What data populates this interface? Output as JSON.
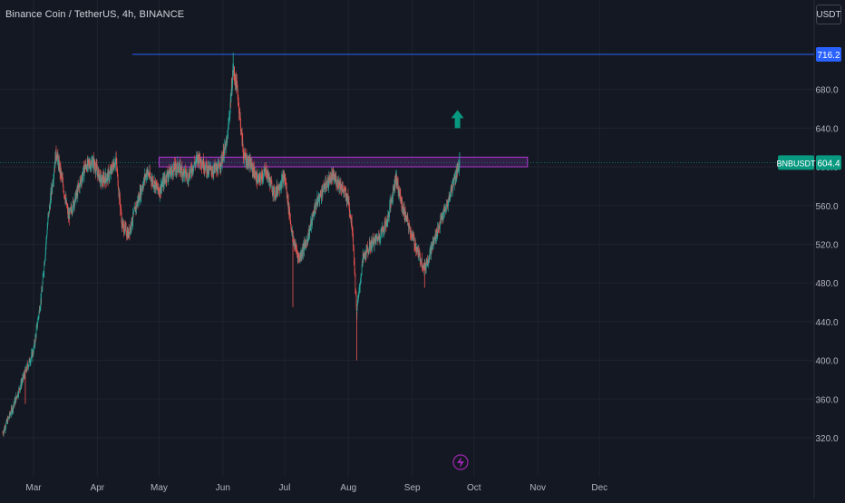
{
  "header": {
    "symbol_title": "Binance Coin / TetherUS, 4h, BINANCE",
    "currency_button": "USDT"
  },
  "colors": {
    "background": "#141822",
    "grid": "#1f2330",
    "up_candle": "#26a69a",
    "down_candle": "#ef5350",
    "zone_border": "#b23ad6",
    "zone_fill": "#6b2a8a",
    "resistance_line": "#2962ff",
    "price_badge": "#089981",
    "level_badge": "#2962ff",
    "arrow": "#089981",
    "lightning": "#9c27b0"
  },
  "chart_data": {
    "type": "candlestick",
    "ylim": [
      300,
      745
    ],
    "y_ticks": [
      "320.0",
      "360.0",
      "400.0",
      "440.0",
      "480.0",
      "520.0",
      "560.0",
      "600.0",
      "640.0",
      "680.0"
    ],
    "x_ticks": [
      "Mar",
      "Apr",
      "May",
      "Jun",
      "Jul",
      "Aug",
      "Sep",
      "Oct",
      "Nov",
      "Dec"
    ],
    "x_tick_dates": [
      "2024-03-01",
      "2024-04-01",
      "2024-05-01",
      "2024-06-01",
      "2024-07-01",
      "2024-08-01",
      "2024-09-01",
      "2024-10-01",
      "2024-11-01",
      "2024-12-01"
    ],
    "resistance_level": {
      "value": 716.2,
      "label": "716.2",
      "from_date": "2024-04-18"
    },
    "current_price": {
      "symbol": "BNBUSDT",
      "value": 604.4,
      "label": "604.4"
    },
    "zone": {
      "from_date": "2024-05-01",
      "to_date": "2024-10-27",
      "low": 600,
      "high": 610
    },
    "arrow_annotation": {
      "direction": "up",
      "date": "2024-09-23",
      "value": 640
    },
    "series_path": [
      [
        "2024-02-15",
        325
      ],
      [
        "2024-02-20",
        352
      ],
      [
        "2024-02-25",
        382
      ],
      [
        "2024-03-01",
        410
      ],
      [
        "2024-03-05",
        470
      ],
      [
        "2024-03-08",
        545
      ],
      [
        "2024-03-12",
        615
      ],
      [
        "2024-03-15",
        585
      ],
      [
        "2024-03-18",
        548
      ],
      [
        "2024-03-22",
        572
      ],
      [
        "2024-03-26",
        600
      ],
      [
        "2024-03-30",
        605
      ],
      [
        "2024-04-03",
        585
      ],
      [
        "2024-04-07",
        592
      ],
      [
        "2024-04-10",
        608
      ],
      [
        "2024-04-13",
        540
      ],
      [
        "2024-04-16",
        530
      ],
      [
        "2024-04-20",
        560
      ],
      [
        "2024-04-25",
        595
      ],
      [
        "2024-04-28",
        585
      ],
      [
        "2024-05-01",
        575
      ],
      [
        "2024-05-05",
        592
      ],
      [
        "2024-05-10",
        600
      ],
      [
        "2024-05-15",
        590
      ],
      [
        "2024-05-20",
        610
      ],
      [
        "2024-05-25",
        596
      ],
      [
        "2024-05-30",
        598
      ],
      [
        "2024-06-03",
        625
      ],
      [
        "2024-06-06",
        700
      ],
      [
        "2024-06-08",
        680
      ],
      [
        "2024-06-11",
        612
      ],
      [
        "2024-06-15",
        600
      ],
      [
        "2024-06-18",
        585
      ],
      [
        "2024-06-22",
        596
      ],
      [
        "2024-06-26",
        572
      ],
      [
        "2024-07-01",
        590
      ],
      [
        "2024-07-05",
        525
      ],
      [
        "2024-07-08",
        505
      ],
      [
        "2024-07-12",
        525
      ],
      [
        "2024-07-16",
        560
      ],
      [
        "2024-07-20",
        578
      ],
      [
        "2024-07-24",
        590
      ],
      [
        "2024-07-28",
        582
      ],
      [
        "2024-08-01",
        565
      ],
      [
        "2024-08-03",
        535
      ],
      [
        "2024-08-05",
        450
      ],
      [
        "2024-08-08",
        505
      ],
      [
        "2024-08-12",
        520
      ],
      [
        "2024-08-16",
        528
      ],
      [
        "2024-08-20",
        545
      ],
      [
        "2024-08-24",
        590
      ],
      [
        "2024-08-27",
        560
      ],
      [
        "2024-09-01",
        528
      ],
      [
        "2024-09-04",
        510
      ],
      [
        "2024-09-07",
        495
      ],
      [
        "2024-09-11",
        520
      ],
      [
        "2024-09-15",
        545
      ],
      [
        "2024-09-18",
        560
      ],
      [
        "2024-09-21",
        585
      ],
      [
        "2024-09-24",
        604.4
      ]
    ],
    "spikes": [
      {
        "date": "2024-02-26",
        "low": 355
      },
      {
        "date": "2024-06-06",
        "high": 718
      },
      {
        "date": "2024-07-05",
        "low": 455
      },
      {
        "date": "2024-08-05",
        "low": 400
      },
      {
        "date": "2024-09-07",
        "low": 475
      },
      {
        "date": "2024-09-24",
        "high": 615
      }
    ]
  }
}
